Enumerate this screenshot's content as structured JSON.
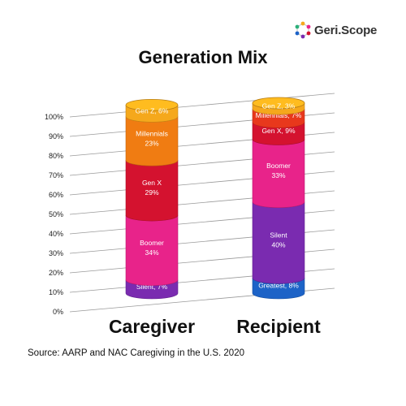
{
  "brand": {
    "name": "Geri.Scope",
    "icon": "molecule-logo-icon"
  },
  "chart_data": {
    "type": "bar",
    "stacked": true,
    "title": "Generation Mix",
    "categories": [
      "Caregiver",
      "Recipient"
    ],
    "ylim": [
      0,
      100
    ],
    "y_ticks": [
      "0%",
      "10%",
      "20%",
      "30%",
      "40%",
      "50%",
      "60%",
      "70%",
      "80%",
      "90%",
      "100%"
    ],
    "grid": true,
    "stacks": [
      {
        "category": "Caregiver",
        "segments": [
          {
            "name": "Silent",
            "value": 7,
            "label": "Silent, 7%",
            "color": "#7a2bb0"
          },
          {
            "name": "Boomer",
            "value": 34,
            "label": "Boomer\n34%",
            "color": "#e8238a"
          },
          {
            "name": "Gen X",
            "value": 29,
            "label": "Gen X\n29%",
            "color": "#d4122f"
          },
          {
            "name": "Millennials",
            "value": 23,
            "label": "Millennials\n23%",
            "color": "#f07c12"
          },
          {
            "name": "Gen Z",
            "value": 6,
            "label": "Gen Z, 6%",
            "color": "#f5a81c"
          }
        ]
      },
      {
        "category": "Recipient",
        "segments": [
          {
            "name": "Greatest",
            "value": 8,
            "label": "Greatest, 8%",
            "color": "#1d63c7"
          },
          {
            "name": "Silent",
            "value": 40,
            "label": "Silent\n40%",
            "color": "#7a2bb0"
          },
          {
            "name": "Boomer",
            "value": 33,
            "label": "Boomer\n33%",
            "color": "#e8238a"
          },
          {
            "name": "Gen X",
            "value": 9,
            "label": "Gen X, 9%",
            "color": "#d4122f"
          },
          {
            "name": "Millennials",
            "value": 7,
            "label": "Millennials, 7%",
            "color": "#e8381c"
          },
          {
            "name": "Gen Z",
            "value": 3,
            "label": "Gen Z, 3%",
            "color": "#f5a81c"
          }
        ]
      }
    ]
  },
  "source": "Source: AARP and NAC Caregiving in the U.S. 2020"
}
